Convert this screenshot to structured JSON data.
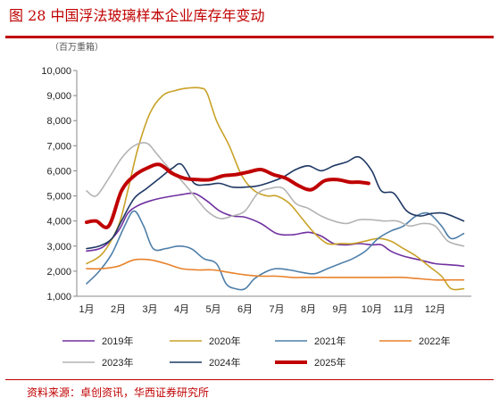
{
  "figure": {
    "title": "图 28 中国浮法玻璃样本企业库存年变动",
    "unit": "（百万重箱）",
    "source": "资料来源：卓创资讯，华西证券研究所"
  },
  "chart_data": {
    "type": "line",
    "title": "",
    "xlabel": "",
    "ylabel": "（百万重箱）",
    "x_categories": [
      "1月",
      "2月",
      "3月",
      "4月",
      "5月",
      "6月",
      "7月",
      "8月",
      "9月",
      "10月",
      "11月",
      "12月"
    ],
    "ylim": [
      1000,
      10000
    ],
    "yticks": [
      1000,
      2000,
      3000,
      4000,
      5000,
      6000,
      7000,
      8000,
      9000,
      10000
    ],
    "ytick_labels": [
      "1,000",
      "2,000",
      "3,000",
      "4,000",
      "5,000",
      "6,000",
      "7,000",
      "8,000",
      "9,000",
      "10,000"
    ],
    "grid": false,
    "legend_position": "bottom",
    "series": [
      {
        "name": "2019年",
        "color": "#7030a0",
        "width": 1.6,
        "points": [
          [
            1,
            2800
          ],
          [
            1.5,
            2950
          ],
          [
            2,
            3600
          ],
          [
            2.3,
            4300
          ],
          [
            2.6,
            4600
          ],
          [
            3,
            4800
          ],
          [
            3.5,
            4950
          ],
          [
            4,
            5050
          ],
          [
            4.4,
            5100
          ],
          [
            4.8,
            4800
          ],
          [
            5.2,
            4400
          ],
          [
            5.6,
            4200
          ],
          [
            6,
            4150
          ],
          [
            6.5,
            3900
          ],
          [
            7,
            3500
          ],
          [
            7.5,
            3450
          ],
          [
            8,
            3550
          ],
          [
            8.4,
            3400
          ],
          [
            8.8,
            3100
          ],
          [
            9.2,
            3050
          ],
          [
            9.6,
            3100
          ],
          [
            10,
            3050
          ],
          [
            10.3,
            3050
          ],
          [
            10.6,
            2800
          ],
          [
            11,
            2600
          ],
          [
            11.5,
            2450
          ],
          [
            12,
            2300
          ],
          [
            12.5,
            2250
          ],
          [
            12.9,
            2200
          ]
        ]
      },
      {
        "name": "2020年",
        "color": "#c9a227",
        "width": 1.6,
        "points": [
          [
            1,
            2300
          ],
          [
            1.5,
            2700
          ],
          [
            2,
            3800
          ],
          [
            2.3,
            5200
          ],
          [
            2.6,
            6800
          ],
          [
            3,
            8300
          ],
          [
            3.4,
            9000
          ],
          [
            3.8,
            9200
          ],
          [
            4.2,
            9300
          ],
          [
            4.6,
            9300
          ],
          [
            4.8,
            9100
          ],
          [
            5.1,
            8000
          ],
          [
            5.5,
            7000
          ],
          [
            5.9,
            5800
          ],
          [
            6.3,
            5200
          ],
          [
            6.7,
            5000
          ],
          [
            7,
            5000
          ],
          [
            7.4,
            4700
          ],
          [
            7.8,
            4100
          ],
          [
            8.2,
            3500
          ],
          [
            8.6,
            3100
          ],
          [
            9,
            3100
          ],
          [
            9.4,
            3100
          ],
          [
            9.8,
            3200
          ],
          [
            10.2,
            3300
          ],
          [
            10.6,
            3200
          ],
          [
            11,
            2900
          ],
          [
            11.4,
            2600
          ],
          [
            11.8,
            2200
          ],
          [
            12.2,
            1800
          ],
          [
            12.5,
            1300
          ],
          [
            12.9,
            1300
          ]
        ]
      },
      {
        "name": "2021年",
        "color": "#4f7fa9",
        "width": 1.6,
        "points": [
          [
            1,
            1500
          ],
          [
            1.4,
            2000
          ],
          [
            1.8,
            2700
          ],
          [
            2.2,
            3800
          ],
          [
            2.5,
            4400
          ],
          [
            2.8,
            3800
          ],
          [
            3.1,
            2900
          ],
          [
            3.5,
            2900
          ],
          [
            3.9,
            3000
          ],
          [
            4.3,
            2900
          ],
          [
            4.7,
            2500
          ],
          [
            5.1,
            2300
          ],
          [
            5.4,
            1500
          ],
          [
            5.7,
            1300
          ],
          [
            6,
            1300
          ],
          [
            6.3,
            1700
          ],
          [
            6.7,
            2000
          ],
          [
            7,
            2100
          ],
          [
            7.4,
            2050
          ],
          [
            7.8,
            1950
          ],
          [
            8.2,
            1900
          ],
          [
            8.6,
            2100
          ],
          [
            9,
            2300
          ],
          [
            9.4,
            2500
          ],
          [
            9.8,
            2800
          ],
          [
            10.2,
            3300
          ],
          [
            10.6,
            3600
          ],
          [
            11,
            3800
          ],
          [
            11.4,
            4200
          ],
          [
            11.8,
            4300
          ],
          [
            12.2,
            3800
          ],
          [
            12.5,
            3300
          ],
          [
            12.9,
            3500
          ]
        ]
      },
      {
        "name": "2022年",
        "color": "#e8822b",
        "width": 1.6,
        "points": [
          [
            1,
            2100
          ],
          [
            1.5,
            2100
          ],
          [
            2,
            2200
          ],
          [
            2.5,
            2450
          ],
          [
            3,
            2450
          ],
          [
            3.5,
            2300
          ],
          [
            4,
            2100
          ],
          [
            4.5,
            2050
          ],
          [
            5,
            2050
          ],
          [
            5.5,
            1950
          ],
          [
            6,
            1850
          ],
          [
            6.5,
            1800
          ],
          [
            7,
            1800
          ],
          [
            7.5,
            1750
          ],
          [
            8,
            1750
          ],
          [
            8.5,
            1750
          ],
          [
            9,
            1750
          ],
          [
            9.5,
            1750
          ],
          [
            10,
            1750
          ],
          [
            10.5,
            1750
          ],
          [
            11,
            1750
          ],
          [
            11.5,
            1700
          ],
          [
            12,
            1650
          ],
          [
            12.5,
            1650
          ],
          [
            12.9,
            1650
          ]
        ]
      },
      {
        "name": "2023年",
        "color": "#b4b4b4",
        "width": 1.6,
        "points": [
          [
            1,
            5200
          ],
          [
            1.3,
            5000
          ],
          [
            1.7,
            5700
          ],
          [
            2.1,
            6500
          ],
          [
            2.5,
            7000
          ],
          [
            2.9,
            7100
          ],
          [
            3.2,
            6700
          ],
          [
            3.6,
            6100
          ],
          [
            4,
            5600
          ],
          [
            4.4,
            5000
          ],
          [
            4.8,
            4400
          ],
          [
            5.2,
            4100
          ],
          [
            5.6,
            4200
          ],
          [
            6,
            4400
          ],
          [
            6.4,
            5100
          ],
          [
            6.8,
            5300
          ],
          [
            7.2,
            5300
          ],
          [
            7.6,
            4700
          ],
          [
            8,
            4500
          ],
          [
            8.4,
            4200
          ],
          [
            8.8,
            4000
          ],
          [
            9.2,
            3900
          ],
          [
            9.6,
            4050
          ],
          [
            10,
            4050
          ],
          [
            10.4,
            4000
          ],
          [
            10.8,
            4000
          ],
          [
            11.2,
            3800
          ],
          [
            11.6,
            3900
          ],
          [
            12,
            3800
          ],
          [
            12.4,
            3200
          ],
          [
            12.9,
            3000
          ]
        ]
      },
      {
        "name": "2024年",
        "color": "#1f3864",
        "width": 1.6,
        "points": [
          [
            1,
            2900
          ],
          [
            1.4,
            3000
          ],
          [
            1.8,
            3300
          ],
          [
            2.1,
            4000
          ],
          [
            2.5,
            4900
          ],
          [
            2.9,
            5300
          ],
          [
            3.3,
            5700
          ],
          [
            3.7,
            6100
          ],
          [
            4,
            6250
          ],
          [
            4.4,
            5500
          ],
          [
            4.8,
            5450
          ],
          [
            5.2,
            5500
          ],
          [
            5.6,
            5350
          ],
          [
            6,
            5350
          ],
          [
            6.4,
            5400
          ],
          [
            6.8,
            5550
          ],
          [
            7.2,
            5750
          ],
          [
            7.6,
            6050
          ],
          [
            8,
            6200
          ],
          [
            8.4,
            6000
          ],
          [
            8.8,
            6200
          ],
          [
            9.2,
            6350
          ],
          [
            9.6,
            6550
          ],
          [
            10,
            6000
          ],
          [
            10.3,
            5200
          ],
          [
            10.7,
            5100
          ],
          [
            11.1,
            4400
          ],
          [
            11.5,
            4200
          ],
          [
            11.9,
            4300
          ],
          [
            12.3,
            4300
          ],
          [
            12.9,
            4000
          ]
        ]
      },
      {
        "name": "2025年",
        "color": "#c00000",
        "width": 4,
        "points": [
          [
            1,
            3950
          ],
          [
            1.3,
            4000
          ],
          [
            1.7,
            3800
          ],
          [
            2.1,
            5200
          ],
          [
            2.5,
            5800
          ],
          [
            2.9,
            6100
          ],
          [
            3.3,
            6250
          ],
          [
            3.7,
            5900
          ],
          [
            4.1,
            5700
          ],
          [
            4.5,
            5650
          ],
          [
            4.9,
            5650
          ],
          [
            5.3,
            5800
          ],
          [
            5.7,
            5850
          ],
          [
            6.1,
            5950
          ],
          [
            6.5,
            6050
          ],
          [
            6.9,
            5850
          ],
          [
            7.3,
            5700
          ],
          [
            7.7,
            5400
          ],
          [
            8.1,
            5250
          ],
          [
            8.5,
            5600
          ],
          [
            8.9,
            5650
          ],
          [
            9.3,
            5550
          ],
          [
            9.6,
            5550
          ],
          [
            9.9,
            5500
          ]
        ]
      }
    ]
  }
}
